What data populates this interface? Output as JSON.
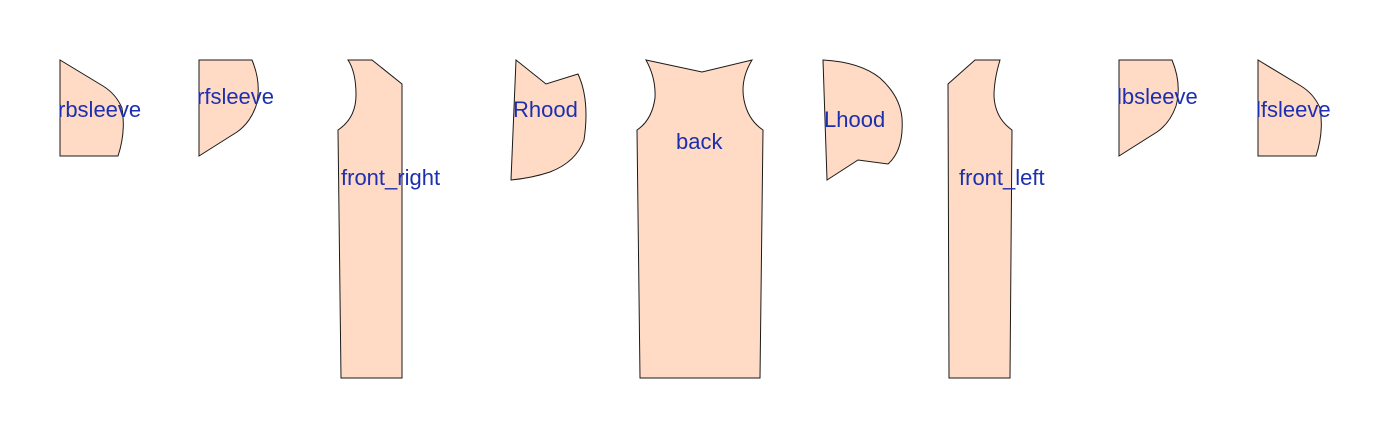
{
  "colors": {
    "piece_fill": "#ffdac4",
    "piece_stroke": "#1a1a1a",
    "label_color": "#1c2fb0",
    "background": "#ffffff"
  },
  "pieces": {
    "rbsleeve": "rbsleeve",
    "rfsleeve": "rfsleeve",
    "front_right": "front_right",
    "rhood": "Rhood",
    "back": "back",
    "lhood": "Lhood",
    "front_left": "front_left",
    "lbsleeve": "lbsleeve",
    "lfsleeve": "lfsleeve"
  }
}
